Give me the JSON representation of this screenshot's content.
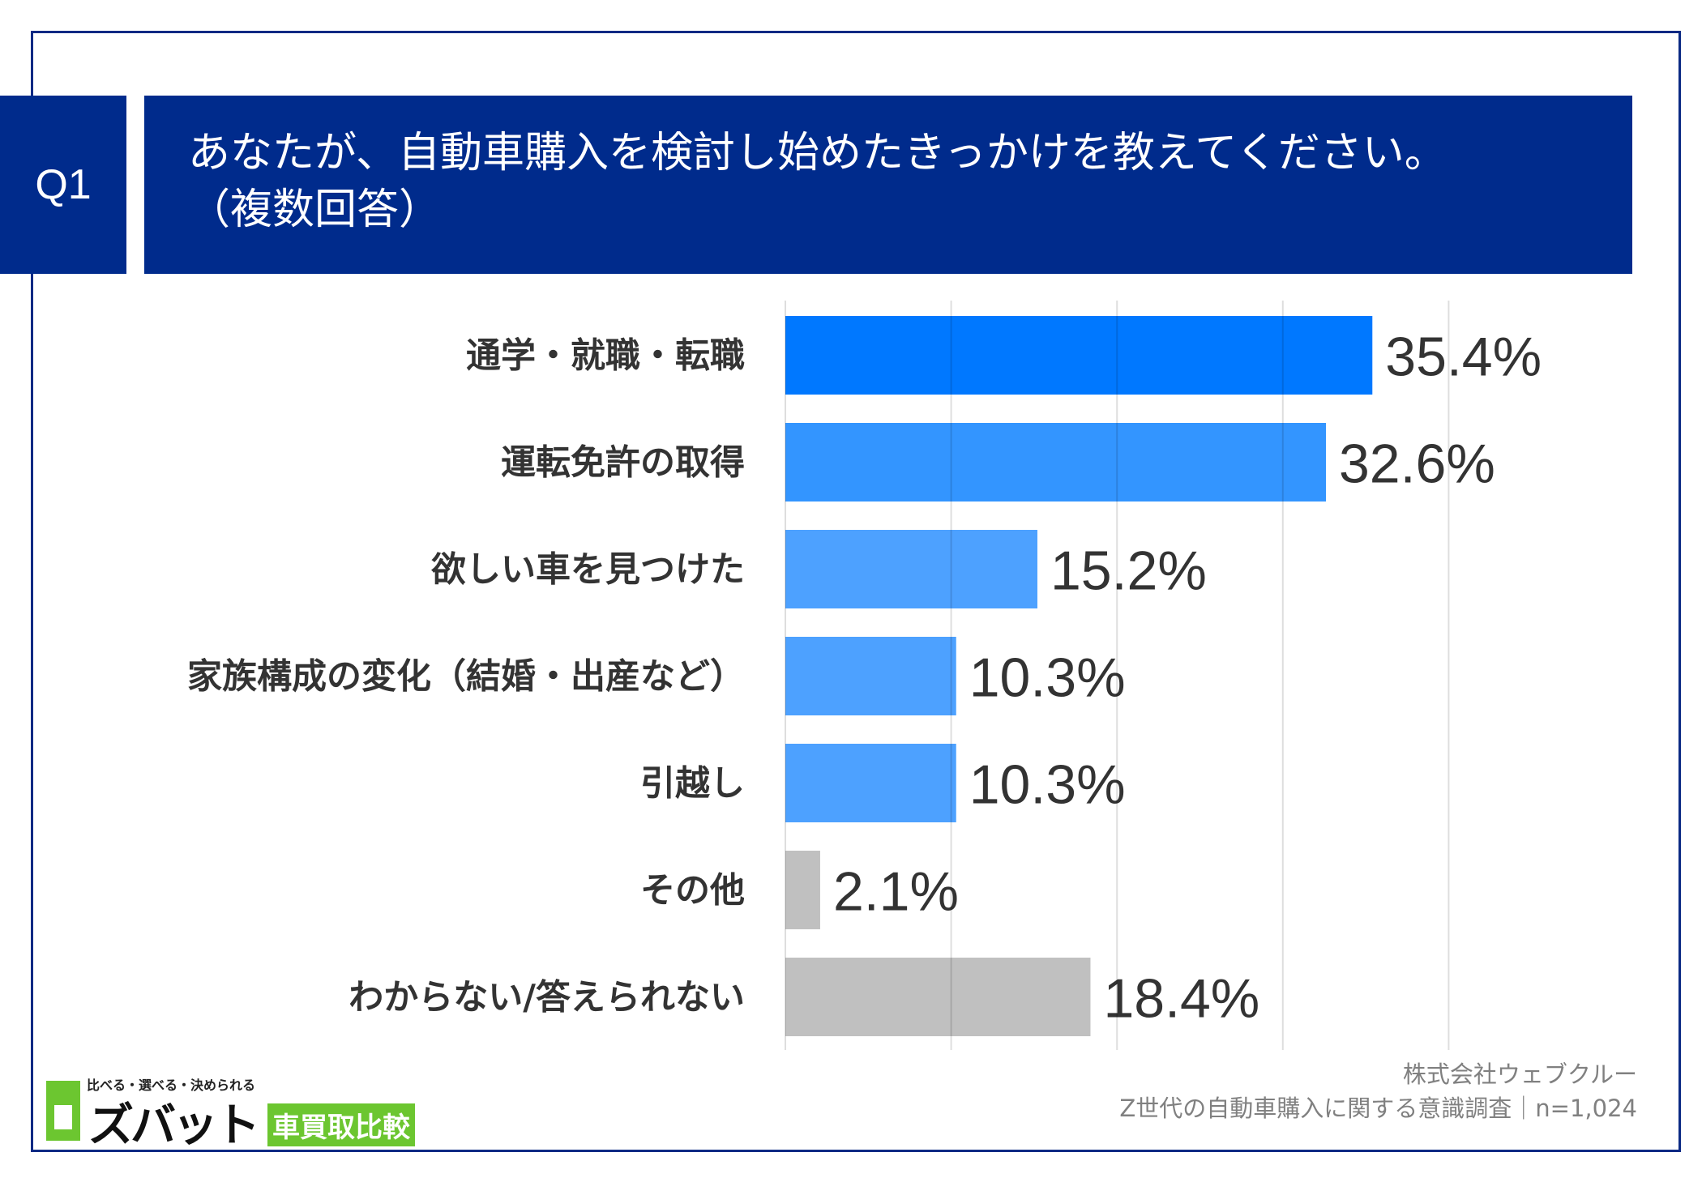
{
  "header": {
    "question_number": "Q1",
    "title_line1": "あなたが、自動車購入を検討し始めたきっかけを教えてください。",
    "title_line2": "（複数回答）"
  },
  "chart_data": {
    "type": "bar",
    "orientation": "horizontal",
    "categories": [
      "通学・就職・転職",
      "運転免許の取得",
      "欲しい車を見つけた",
      "家族構成の変化（結婚・出産など）",
      "引越し",
      "その他",
      "わからない/答えられない"
    ],
    "values": [
      35.4,
      32.6,
      15.2,
      10.3,
      10.3,
      2.1,
      18.4
    ],
    "value_labels": [
      "35.4%",
      "32.6%",
      "15.2%",
      "10.3%",
      "10.3%",
      "2.1%",
      "18.4%"
    ],
    "unit": "%",
    "xlim": [
      0,
      40
    ],
    "grid": true,
    "bar_colors": [
      "#0078FF",
      "#3395FF",
      "#4DA1FF",
      "#4DA1FF",
      "#4DA1FF",
      "#C0C0C0",
      "#C0C0C0"
    ]
  },
  "footer": {
    "company": "株式会社ウェブクルー",
    "survey": "Z世代の自動車購入に関する意識調査｜n=1,024"
  },
  "logo": {
    "tagline": "比べる・選べる・決められる",
    "name": "ズバット",
    "service": "車買取比較"
  },
  "colors": {
    "header_bg": "#002B8C",
    "frame": "#0B2A84",
    "text": "#333333"
  }
}
